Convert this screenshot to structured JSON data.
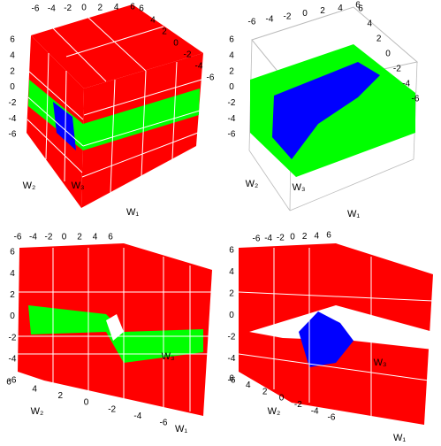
{
  "panels": [
    {
      "axes": [
        {
          "ticks": [
            -6,
            -4,
            -2,
            0,
            2,
            4,
            6
          ]
        },
        {
          "ticks": [
            6,
            4,
            2,
            0,
            -2,
            -4,
            -6
          ]
        },
        {
          "ticks": [
            6,
            4,
            2,
            0,
            -2,
            -4,
            -6
          ]
        }
      ],
      "labels": [
        "W₂",
        "W₃",
        "W₁"
      ]
    },
    {
      "axes": [
        {
          "ticks": [
            -6,
            -4,
            -2,
            0,
            2,
            4,
            6
          ]
        },
        {
          "ticks": [
            6,
            4,
            2,
            0,
            -2,
            -4,
            -6
          ]
        },
        {
          "ticks": [
            6,
            4,
            2,
            0,
            -2,
            -4,
            -6
          ]
        }
      ],
      "labels": [
        "W₂",
        "W₃",
        "W₁"
      ]
    },
    {
      "axes": [
        {
          "ticks": [
            -6,
            -4,
            -2,
            0,
            2,
            4,
            6
          ]
        },
        {
          "ticks": [
            6,
            4,
            2,
            0,
            -2,
            -4,
            -6
          ]
        },
        {
          "ticks": [
            6,
            4,
            2,
            0,
            -2,
            -4,
            -6
          ]
        }
      ],
      "labels": [
        "W₂",
        "W₃",
        "W₁"
      ]
    },
    {
      "axes": [
        {
          "ticks": [
            -6,
            -4,
            -2,
            0,
            2,
            4,
            6
          ]
        },
        {
          "ticks": [
            6,
            4,
            2,
            0,
            -2,
            -4,
            -6
          ]
        },
        {
          "ticks": [
            6,
            4,
            2,
            0,
            -2,
            -4,
            -6
          ]
        }
      ],
      "labels": [
        "W₂",
        "W₃",
        "W₁"
      ]
    }
  ]
}
